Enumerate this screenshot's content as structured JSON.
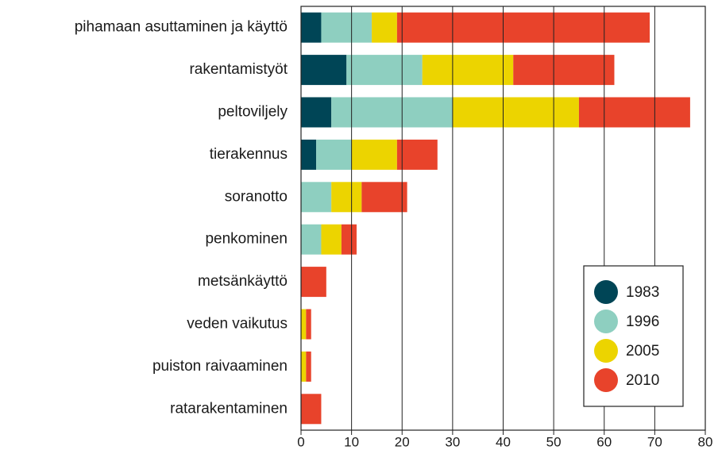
{
  "chart_data": {
    "type": "stacked_barh",
    "categories": [
      "pihamaan asuttaminen ja käyttö",
      "rakentamistyöt",
      "peltoviljely",
      "tierakennus",
      "soranotto",
      "penkominen",
      "metsänkäyttö",
      "veden vaikutus",
      "puiston raivaaminen",
      "ratarakentaminen"
    ],
    "series": [
      {
        "name": "1983",
        "color": "#004556",
        "values": [
          4,
          9,
          6,
          3,
          0,
          0,
          0,
          0,
          0,
          0
        ]
      },
      {
        "name": "1996",
        "color": "#8ecfc0",
        "values": [
          10,
          15,
          24,
          7,
          6,
          4,
          0,
          0,
          0,
          0
        ]
      },
      {
        "name": "2005",
        "color": "#ecd400",
        "values": [
          5,
          18,
          25,
          9,
          6,
          4,
          0,
          1,
          1,
          0
        ]
      },
      {
        "name": "2010",
        "color": "#e8432b",
        "values": [
          50,
          20,
          22,
          8,
          9,
          3,
          5,
          1,
          1,
          4
        ]
      }
    ],
    "xlim": [
      0,
      80
    ],
    "xticks": [
      0,
      10,
      20,
      30,
      40,
      50,
      60,
      70,
      80
    ],
    "grid": true,
    "legend": "lower right"
  }
}
